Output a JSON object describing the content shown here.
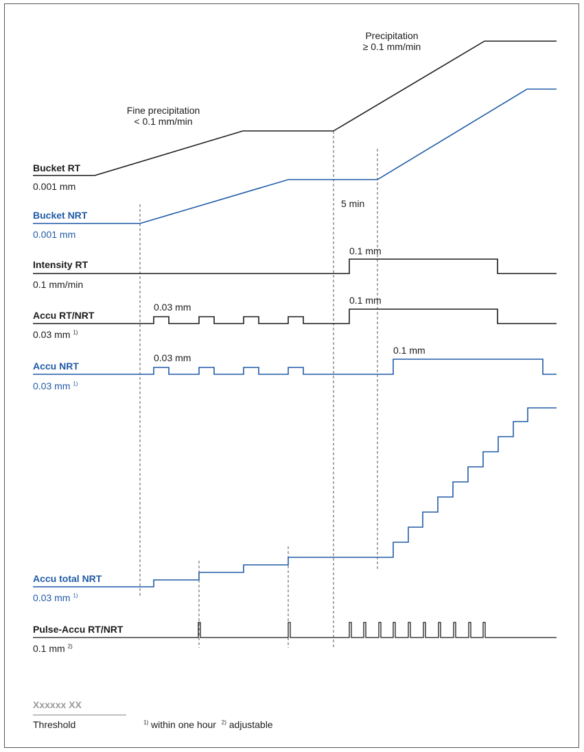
{
  "colors": {
    "black": "#1a1a1a",
    "blue": "#1f5aa6",
    "grey": "#9a9a9a",
    "dashed": "#444444"
  },
  "annotations": {
    "fine_precip_line1": "Fine precipitation",
    "fine_precip_line2": "< 0.1 mm/min",
    "precip_line1": "Precipitation",
    "precip_line2": "≥ 0.1 mm/min",
    "five_min": "5 min",
    "intensity_pulse": "0.1 mm",
    "accu_rt_small": "0.03 mm",
    "accu_rt_large": "0.1 mm",
    "accu_nrt_small": "0.03 mm",
    "accu_nrt_large": "0.1 mm"
  },
  "signals": [
    {
      "key": "bucket_rt",
      "name": "Bucket RT",
      "resolution": "0.001 mm",
      "note": "",
      "color": "black"
    },
    {
      "key": "bucket_nrt",
      "name": "Bucket NRT",
      "resolution": "0.001 mm",
      "note": "",
      "color": "blue"
    },
    {
      "key": "intensity_rt",
      "name": "Intensity RT",
      "resolution": "0.1 mm/min",
      "note": "",
      "color": "black"
    },
    {
      "key": "accu_rt_nrt",
      "name": "Accu RT/NRT",
      "resolution": "0.03 mm",
      "note": "1)",
      "color": "black"
    },
    {
      "key": "accu_nrt",
      "name": "Accu NRT",
      "resolution": "0.03 mm",
      "note": "1)",
      "color": "blue"
    },
    {
      "key": "accu_total_nrt",
      "name": "Accu total NRT",
      "resolution": "0.03 mm",
      "note": "1)",
      "color": "blue"
    },
    {
      "key": "pulse_accu",
      "name": "Pulse-Accu RT/NRT",
      "resolution": "0.1 mm",
      "note": "2)",
      "color": "black"
    }
  ],
  "legend": {
    "placeholder": "Xxxxxx XX",
    "caption": "Threshold",
    "note1_mark": "1)",
    "note1_text": "within one hour",
    "note2_mark": "2)",
    "note2_text": "adjustable"
  }
}
